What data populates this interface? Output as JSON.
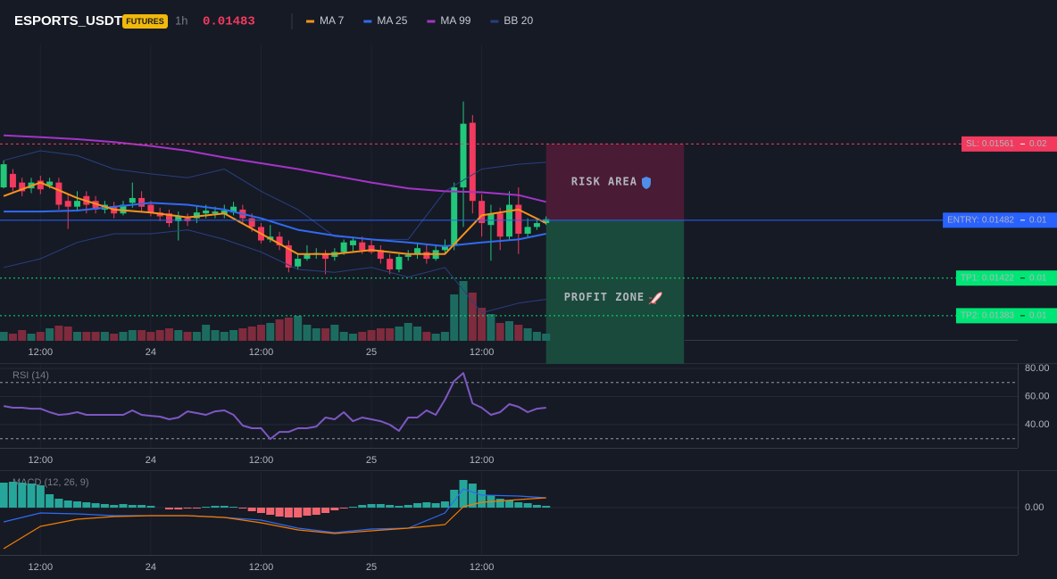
{
  "chart_data": [
    {
      "type": "candlestick",
      "title": "ESPORTS_USDT",
      "badge": "FUTURES",
      "interval": "1h",
      "last_price": 0.01483,
      "xlim": [
        -0.4,
        110.3
      ],
      "ylim": [
        0.01357,
        0.01664
      ],
      "grid": true,
      "categories": [
        null,
        null,
        null,
        null,
        "12:00",
        null,
        null,
        null,
        null,
        null,
        null,
        null,
        null,
        null,
        null,
        null,
        "24",
        null,
        null,
        null,
        null,
        null,
        null,
        null,
        null,
        null,
        null,
        null,
        "12:00",
        null,
        null,
        null,
        null,
        null,
        null,
        null,
        null,
        null,
        null,
        null,
        "25",
        null,
        null,
        null,
        null,
        null,
        null,
        null,
        null,
        null,
        null,
        null,
        "12:00",
        null,
        null,
        null,
        null,
        null,
        null,
        null
      ],
      "candle_colors": [
        "#22c77a",
        "#f23a5e"
      ],
      "candles": [
        [
          0.01516,
          0.01544,
          0.01515,
          0.0154
        ],
        [
          0.0153,
          0.01535,
          0.01512,
          0.01516
        ],
        [
          0.01521,
          0.01526,
          0.01507,
          0.01512
        ],
        [
          0.01515,
          0.01526,
          0.0151,
          0.01521
        ],
        [
          0.01523,
          0.01528,
          0.01509,
          0.01514
        ],
        [
          0.01518,
          0.01526,
          0.01515,
          0.01522
        ],
        [
          0.01521,
          0.01526,
          0.01493,
          0.01498
        ],
        [
          0.01502,
          0.01509,
          0.01473,
          0.01496
        ],
        [
          0.01496,
          0.01512,
          0.01491,
          0.01502
        ],
        [
          0.01507,
          0.01512,
          0.01489,
          0.01498
        ],
        [
          0.01502,
          0.01507,
          0.01489,
          0.01493
        ],
        [
          0.01493,
          0.01502,
          0.01489,
          0.01498
        ],
        [
          0.01496,
          0.01501,
          0.01484,
          0.01489
        ],
        [
          0.01489,
          0.01502,
          0.01487,
          0.01498
        ],
        [
          0.015,
          0.01521,
          0.01495,
          0.01505
        ],
        [
          0.01505,
          0.01512,
          0.01491,
          0.01496
        ],
        [
          0.01498,
          0.01502,
          0.01486,
          0.0149
        ],
        [
          0.0149,
          0.01495,
          0.01481,
          0.01486
        ],
        [
          0.01489,
          0.01493,
          0.01475,
          0.01479
        ],
        [
          0.01481,
          0.01491,
          0.01461,
          0.01486
        ],
        [
          0.01484,
          0.01489,
          0.01476,
          0.01481
        ],
        [
          0.01484,
          0.01496,
          0.01479,
          0.0149
        ],
        [
          0.01489,
          0.01498,
          0.01484,
          0.01492
        ],
        [
          0.01489,
          0.01496,
          0.01484,
          0.01491
        ],
        [
          0.01488,
          0.01498,
          0.01484,
          0.01492
        ],
        [
          0.0149,
          0.01501,
          0.01487,
          0.01496
        ],
        [
          0.01493,
          0.01498,
          0.01479,
          0.01484
        ],
        [
          0.01484,
          0.01489,
          0.0147,
          0.01475
        ],
        [
          0.01475,
          0.01479,
          0.01458,
          0.01461
        ],
        [
          0.01462,
          0.01477,
          0.01459,
          0.01465
        ],
        [
          0.01465,
          0.0147,
          0.01451,
          0.01456
        ],
        [
          0.01456,
          0.01461,
          0.01428,
          0.01433
        ],
        [
          0.01434,
          0.01447,
          0.01431,
          0.01442
        ],
        [
          0.01442,
          0.01456,
          0.0144,
          0.01447
        ],
        [
          0.01447,
          0.01453,
          0.01442,
          0.01448
        ],
        [
          0.01447,
          0.01451,
          0.01426,
          0.01442
        ],
        [
          0.01444,
          0.01453,
          0.0144,
          0.01449
        ],
        [
          0.01449,
          0.01462,
          0.01446,
          0.01459
        ],
        [
          0.01456,
          0.01465,
          0.01449,
          0.01461
        ],
        [
          0.01459,
          0.01465,
          0.01447,
          0.01451
        ],
        [
          0.01456,
          0.01461,
          0.01447,
          0.01449
        ],
        [
          0.01451,
          0.01456,
          0.01437,
          0.01442
        ],
        [
          0.01442,
          0.01447,
          0.01426,
          0.01431
        ],
        [
          0.01431,
          0.01447,
          0.01428,
          0.01444
        ],
        [
          0.01444,
          0.01451,
          0.0144,
          0.01446
        ],
        [
          0.01447,
          0.01459,
          0.01442,
          0.01453
        ],
        [
          0.01449,
          0.01456,
          0.01437,
          0.01442
        ],
        [
          0.01442,
          0.01456,
          0.0144,
          0.01451
        ],
        [
          0.01451,
          0.01462,
          0.01447,
          0.01456
        ],
        [
          0.01456,
          0.01521,
          0.01451,
          0.01516
        ],
        [
          0.01516,
          0.01605,
          0.01475,
          0.01582
        ],
        [
          0.01583,
          0.01591,
          0.01489,
          0.01502
        ],
        [
          0.01502,
          0.01509,
          0.01465,
          0.01479
        ],
        [
          0.01477,
          0.01498,
          0.0144,
          0.01489
        ],
        [
          0.01489,
          0.01495,
          0.01451,
          0.01465
        ],
        [
          0.01465,
          0.01512,
          0.01461,
          0.01498
        ],
        [
          0.01498,
          0.01516,
          0.01447,
          0.01468
        ],
        [
          0.01468,
          0.01484,
          0.01465,
          0.01475
        ],
        [
          0.01475,
          0.01484,
          0.01472,
          0.01479
        ],
        [
          0.01479,
          0.01486,
          0.01477,
          0.01483
        ]
      ],
      "volume_colors": [
        "#1d6b60",
        "#7e2b3d"
      ],
      "volume": [
        10,
        8,
        12,
        8,
        10,
        14,
        17,
        16,
        10,
        10,
        10,
        10,
        8,
        10,
        12,
        12,
        10,
        12,
        14,
        12,
        10,
        10,
        18,
        12,
        10,
        12,
        14,
        16,
        18,
        20,
        24,
        26,
        28,
        18,
        14,
        14,
        18,
        10,
        8,
        10,
        12,
        14,
        14,
        16,
        20,
        16,
        10,
        8,
        10,
        52,
        67,
        54,
        37,
        30,
        20,
        22,
        18,
        14,
        10,
        8
      ],
      "series": [
        {
          "name": "MA 7",
          "color": "#f7931a",
          "x": [
            0,
            4,
            8,
            12,
            16,
            20,
            24,
            28,
            32,
            36,
            40,
            44,
            48,
            52,
            56,
            59
          ],
          "values": [
            0.01507,
            0.01521,
            0.01505,
            0.01493,
            0.0149,
            0.01485,
            0.01489,
            0.01468,
            0.01447,
            0.01447,
            0.01451,
            0.01447,
            0.01447,
            0.01487,
            0.01493,
            0.01479
          ]
        },
        {
          "name": "MA 25",
          "color": "#2f6bf0",
          "x": [
            0,
            4,
            8,
            12,
            16,
            20,
            24,
            28,
            32,
            36,
            40,
            44,
            48,
            52,
            56,
            59
          ],
          "values": [
            0.01491,
            0.01491,
            0.01492,
            0.01496,
            0.015,
            0.01498,
            0.01493,
            0.01484,
            0.01472,
            0.01466,
            0.01462,
            0.01459,
            0.01455,
            0.01459,
            0.01462,
            0.01468
          ]
        },
        {
          "name": "MA 99",
          "color": "#a434c8",
          "x": [
            0,
            4,
            8,
            12,
            16,
            20,
            24,
            28,
            32,
            36,
            40,
            44,
            48,
            52,
            56,
            59
          ],
          "values": [
            0.0157,
            0.01568,
            0.01566,
            0.01563,
            0.01559,
            0.01554,
            0.01547,
            0.01541,
            0.01535,
            0.01528,
            0.01521,
            0.01515,
            0.01512,
            0.01511,
            0.01508,
            0.01501
          ]
        },
        {
          "name": "BB 20",
          "color": "#2a3f80",
          "x": [
            0,
            4,
            8,
            12,
            16,
            20,
            24,
            28,
            32,
            36,
            40,
            44,
            48,
            52,
            56,
            59
          ],
          "upper": [
            0.01544,
            0.01554,
            0.01549,
            0.01535,
            0.0153,
            0.01526,
            0.01535,
            0.01512,
            0.01493,
            0.01465,
            0.01462,
            0.01462,
            0.01512,
            0.01535,
            0.0154,
            0.01542
          ],
          "lower": [
            0.01433,
            0.01442,
            0.01459,
            0.01468,
            0.01468,
            0.01472,
            0.01462,
            0.01449,
            0.01431,
            0.01428,
            0.01433,
            0.01423,
            0.01433,
            0.01386,
            0.01396,
            0.014
          ]
        }
      ],
      "zones": [
        {
          "label": "RISK AREA",
          "x": [
            59,
            74
          ],
          "range": [
            0.01482,
            0.01561
          ],
          "color": "#4a1b34",
          "text_color": "#ff3d7f"
        },
        {
          "label": "PROFIT ZONE",
          "x": [
            59,
            74
          ],
          "range": [
            0.01333,
            0.01482
          ],
          "color": "#1a4a3b",
          "text_color": "#2ee89a"
        }
      ],
      "levels": [
        {
          "label": "SL: 0.01561",
          "value": 0.01561,
          "value_label": "0.02",
          "color": "#f23a5e",
          "text_color": "#ffffff",
          "style": "dashed"
        },
        {
          "label": "ENTRY: 0.01482",
          "value": 0.01482,
          "value_label": "0.01",
          "color": "#2962ff",
          "text_color": "#ffffff",
          "style": "solid"
        },
        {
          "label": "TP1: 0.01422",
          "value": 0.01422,
          "value_label": "0.01",
          "color": "#00e676",
          "text_color": "#10231a",
          "style": "dotted"
        },
        {
          "label": "TP2: 0.01383",
          "value": 0.01383,
          "value_label": "0.01",
          "color": "#00e676",
          "text_color": "#10231a",
          "style": "dotted"
        }
      ]
    },
    {
      "type": "line",
      "title": "RSI (14)",
      "color": "#7e57c2",
      "xlim": [
        -0.4,
        110.3
      ],
      "ylim": [
        23.5,
        83.2
      ],
      "grid": true,
      "yticks": [
        {
          "value": 80,
          "label": "80.00"
        },
        {
          "value": 60,
          "label": "60.00"
        },
        {
          "value": 40,
          "label": "40.00"
        }
      ],
      "levels": [
        70,
        30
      ],
      "categories": [
        null,
        null,
        null,
        null,
        "12:00",
        null,
        null,
        null,
        null,
        null,
        null,
        null,
        null,
        null,
        null,
        null,
        "24",
        null,
        null,
        null,
        null,
        null,
        null,
        null,
        null,
        null,
        null,
        null,
        "12:00",
        null,
        null,
        null,
        null,
        null,
        null,
        null,
        null,
        null,
        null,
        null,
        "25",
        null,
        null,
        null,
        null,
        null,
        null,
        null,
        null,
        null,
        null,
        null,
        "12:00",
        null,
        null,
        null,
        null,
        null,
        null,
        null
      ],
      "values": [
        53.3,
        52.1,
        52.1,
        51.4,
        51.4,
        48.9,
        47.0,
        47.6,
        48.9,
        47.0,
        47.0,
        47.0,
        47.0,
        47.0,
        50.2,
        47.0,
        46.3,
        45.7,
        43.8,
        45.1,
        49.5,
        48.3,
        47.0,
        49.5,
        50.2,
        47.0,
        39.4,
        37.5,
        37.5,
        29.8,
        34.9,
        34.9,
        37.5,
        37.5,
        38.7,
        45.1,
        43.8,
        48.9,
        42.5,
        45.1,
        43.8,
        42.5,
        40.0,
        35.6,
        45.1,
        45.1,
        50.2,
        47.0,
        57.8,
        71.1,
        76.8,
        55.2,
        52.1,
        47.0,
        48.9,
        54.6,
        52.7,
        48.9,
        51.4,
        52.1
      ]
    },
    {
      "type": "macd",
      "title": "MACD (12, 26, 9)",
      "xlim": [
        -0.4,
        110.3
      ],
      "ylim": [
        -5.3e-05,
        4.1e-05
      ],
      "grid": true,
      "yticks": [
        {
          "value": 0,
          "label": "0.00"
        }
      ],
      "categories": [
        null,
        null,
        null,
        null,
        "12:00",
        null,
        null,
        null,
        null,
        null,
        null,
        null,
        null,
        null,
        null,
        null,
        "24",
        null,
        null,
        null,
        null,
        null,
        null,
        null,
        null,
        null,
        null,
        null,
        "12:00",
        null,
        null,
        null,
        null,
        null,
        null,
        null,
        null,
        null,
        null,
        null,
        "25",
        null,
        null,
        null,
        null,
        null,
        null,
        null,
        null,
        null,
        null,
        null,
        "12:00",
        null,
        null,
        null,
        null,
        null,
        null,
        null
      ],
      "histogram_colors": [
        "#26a69a",
        "#f2656f"
      ],
      "histogram": [
        2.8e-05,
        2.9e-05,
        2.8e-05,
        2.7e-05,
        2.5e-05,
        1.5e-05,
        1e-05,
        8e-06,
        7e-06,
        6e-06,
        5e-06,
        4e-06,
        3e-06,
        4e-06,
        3e-06,
        3e-06,
        2e-06,
        0,
        -2e-06,
        -2e-06,
        -1e-06,
        -1e-06,
        1e-06,
        2e-06,
        2e-06,
        1e-06,
        -1e-06,
        -4e-06,
        -6e-06,
        -8e-06,
        -1e-05,
        -1.1e-05,
        -1.1e-05,
        -9e-06,
        -8e-06,
        -6e-06,
        -3e-06,
        -1e-06,
        1e-06,
        3e-06,
        4e-06,
        4e-06,
        3e-06,
        2e-06,
        3e-06,
        5e-06,
        6e-06,
        5e-06,
        7e-06,
        2e-05,
        3.1e-05,
        2.7e-05,
        2e-05,
        1.4e-05,
        1e-05,
        8e-06,
        6e-06,
        5e-06,
        3e-06,
        2e-06
      ],
      "series": [
        {
          "color": "#2f6bf0",
          "x": [
            0,
            4,
            8,
            12,
            16,
            20,
            24,
            28,
            32,
            36,
            40,
            44,
            48,
            50,
            52,
            56,
            59
          ],
          "values": [
            -1.6e-05,
            -6e-06,
            -7e-06,
            -9e-06,
            -9e-06,
            -9e-06,
            -1.1e-05,
            -1.4e-05,
            -2.3e-05,
            -2.8e-05,
            -2.4e-05,
            -2.3e-05,
            -6e-06,
            2.1e-05,
            1.4e-05,
            1.3e-05,
            1.1e-05
          ]
        },
        {
          "color": "#f57c00",
          "x": [
            0,
            4,
            8,
            12,
            16,
            20,
            24,
            28,
            32,
            36,
            40,
            44,
            48,
            50,
            52,
            56,
            59
          ],
          "values": [
            -4.6e-05,
            -2.1e-05,
            -1.3e-05,
            -1e-05,
            -9e-06,
            -9e-06,
            -1.1e-05,
            -1.7e-05,
            -2.5e-05,
            -2.9e-05,
            -2.6e-05,
            -2.3e-05,
            -1.9e-05,
            1e-06,
            6e-06,
            9e-06,
            1.1e-05
          ]
        }
      ]
    }
  ]
}
